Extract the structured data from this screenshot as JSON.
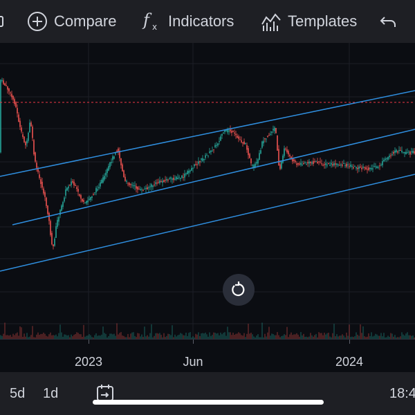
{
  "toolbar": {
    "compare_label": "Compare",
    "indicators_label": "Indicators",
    "templates_label": "Templates"
  },
  "time_axis": {
    "labels": [
      "2023",
      "Jun",
      "2024"
    ]
  },
  "bottom_bar": {
    "range_5d": "5d",
    "range_1d": "1d",
    "clock": "18:4"
  },
  "colors": {
    "background": "#0b0d12",
    "toolbar": "#1e1f24",
    "up_candle": "#26a69a",
    "down_candle": "#ef5350",
    "channel_line": "#2f8fe0",
    "price_line": "#f23645"
  },
  "icons": [
    "panel-edge-icon",
    "plus-circle-icon",
    "fx-icon",
    "templates-icon",
    "undo-icon",
    "calendar-goto-icon",
    "reset-chart-icon"
  ]
}
